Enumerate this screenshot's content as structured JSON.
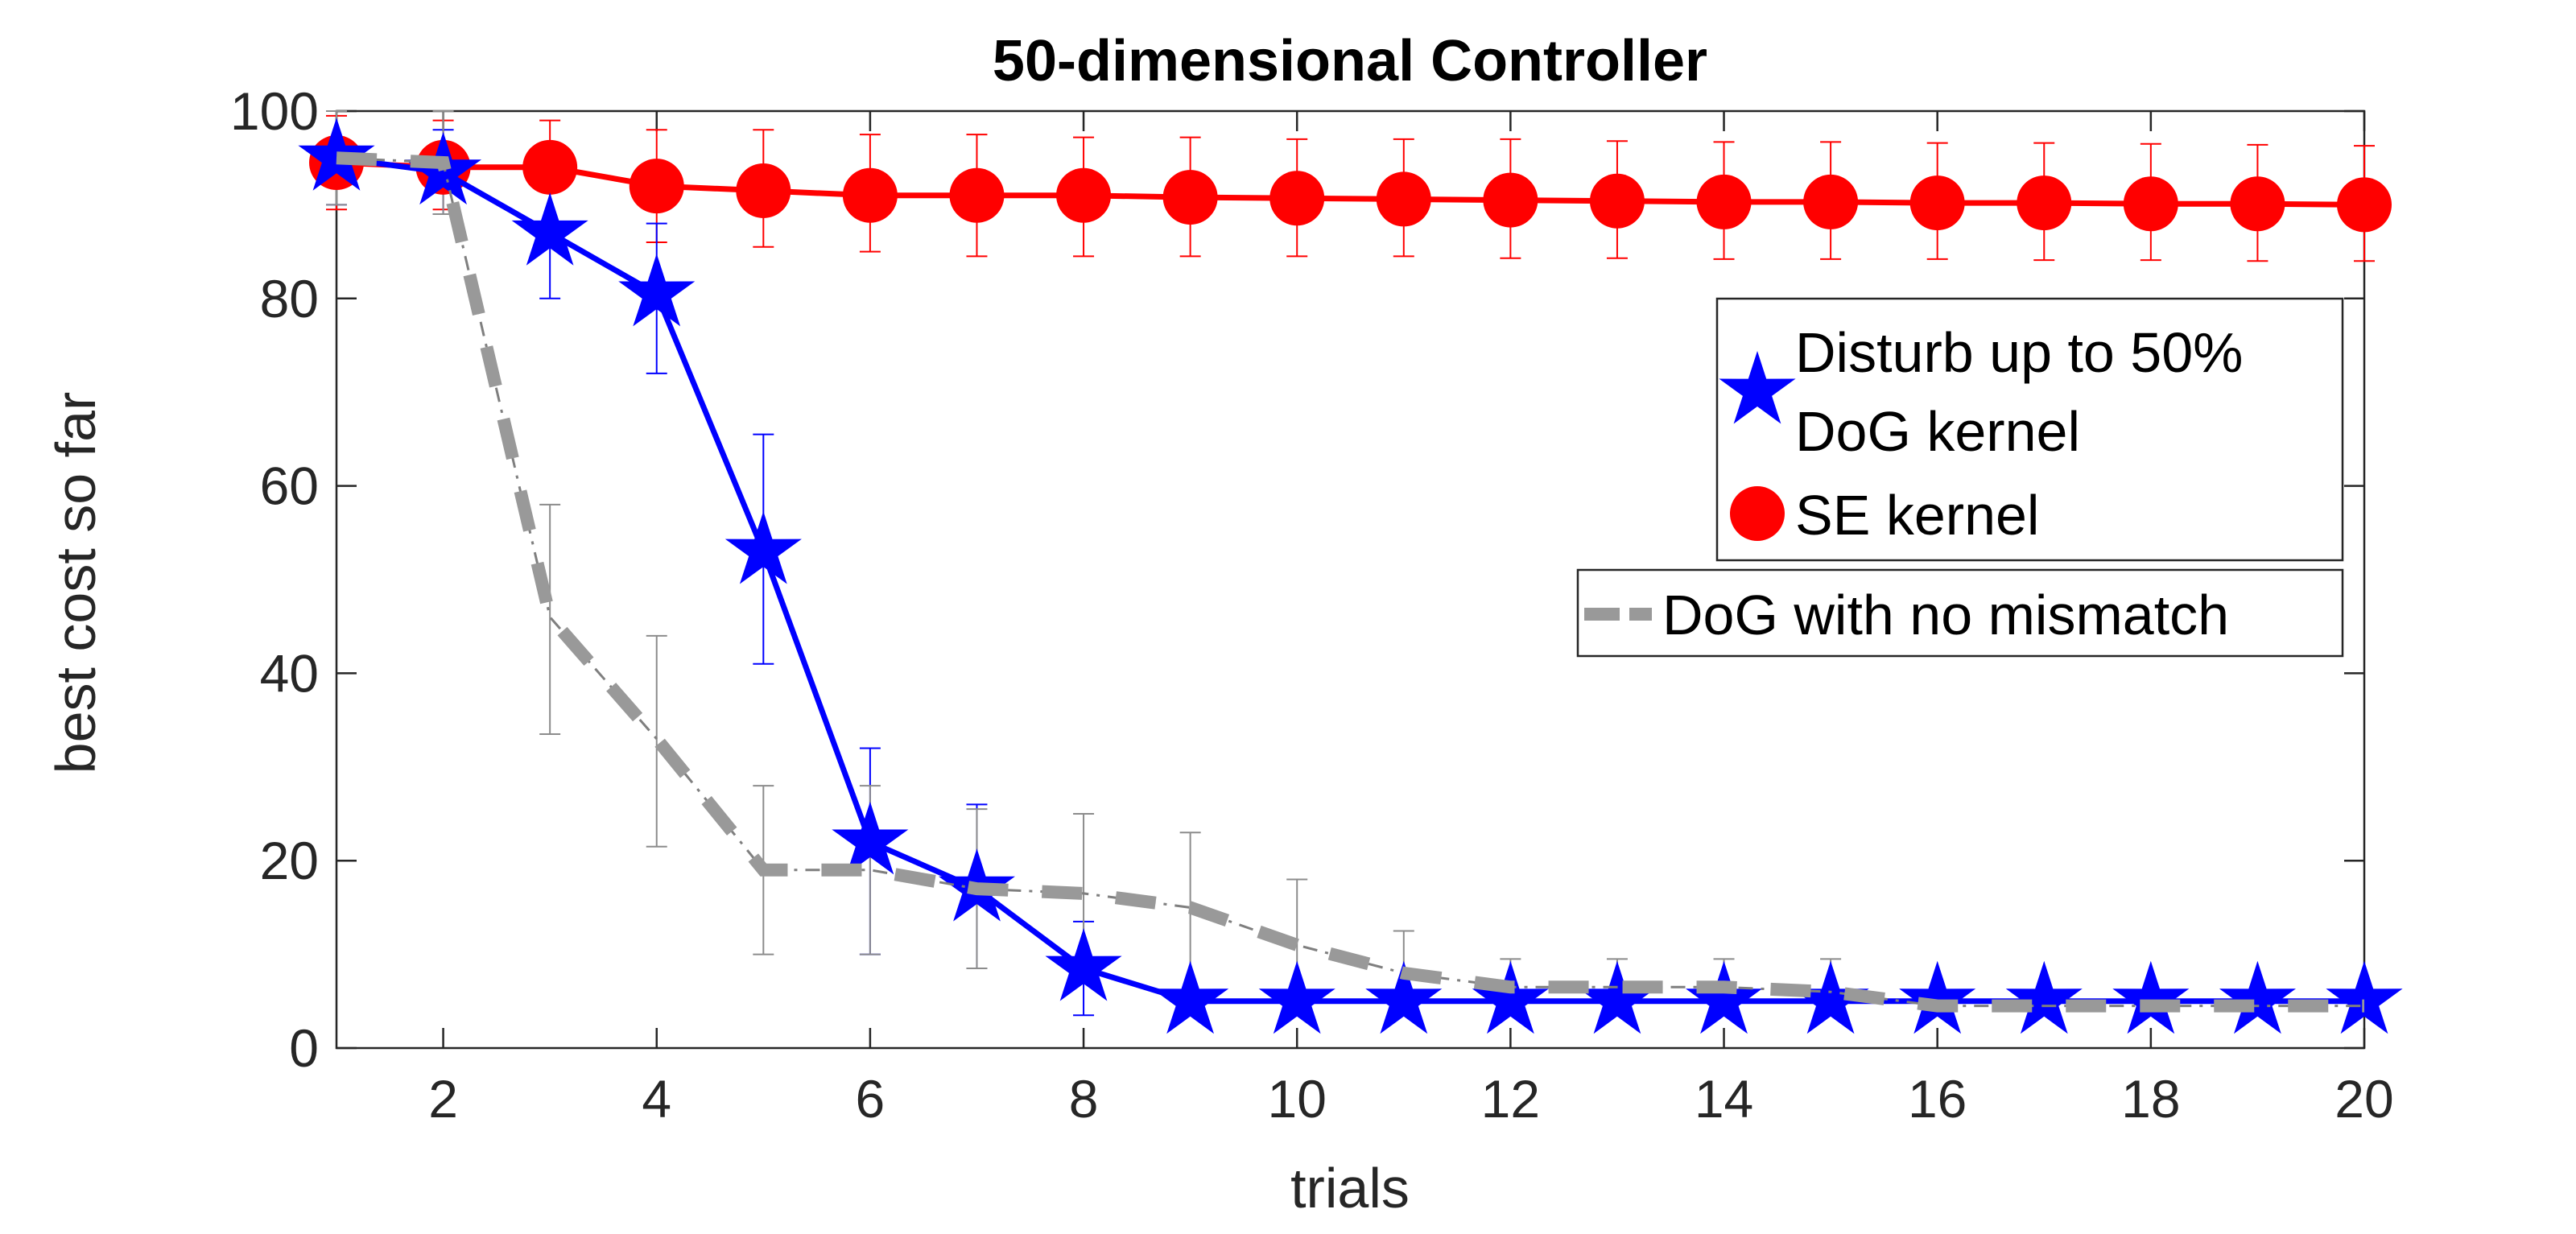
{
  "chart_data": {
    "type": "line",
    "title": "50-dimensional Controller",
    "xlabel": "trials",
    "ylabel": "best cost so far",
    "xlim": [
      1,
      20
    ],
    "ylim": [
      0,
      100
    ],
    "xticks": [
      2,
      4,
      6,
      8,
      10,
      12,
      14,
      16,
      18,
      20
    ],
    "yticks": [
      0,
      20,
      40,
      60,
      80,
      100
    ],
    "grid": false,
    "legend_position": "right",
    "x": [
      1,
      2,
      3,
      4,
      5,
      6,
      7,
      8,
      9,
      10,
      11,
      12,
      13,
      14,
      15,
      16,
      17,
      18,
      19,
      20
    ],
    "series": [
      {
        "name": "Disturb up to 50% DoG kernel",
        "legend_label_line1": "Disturb up to 50%",
        "legend_label_line2": "DoG kernel",
        "color": "#0000ff",
        "marker": "star",
        "line_style": "solid",
        "values": [
          95,
          93.5,
          87,
          80.5,
          53,
          22,
          17,
          8.5,
          5,
          5,
          5,
          5,
          5,
          5,
          5,
          5,
          5,
          5,
          5,
          5
        ],
        "err_low": [
          90,
          89,
          80,
          72,
          41,
          10,
          8.5,
          3.5,
          5,
          5,
          5,
          5,
          5,
          5,
          5,
          5,
          5,
          5,
          5,
          5
        ],
        "err_high": [
          100,
          98,
          93,
          88,
          65.5,
          32,
          26,
          13.5,
          5,
          5,
          5,
          5,
          5,
          5,
          5,
          5,
          5,
          5,
          5,
          5
        ]
      },
      {
        "name": "SE kernel",
        "color": "#ff0000",
        "marker": "circle",
        "line_style": "solid",
        "values": [
          94.5,
          94,
          94,
          92,
          91.5,
          91,
          91,
          91,
          90.8,
          90.7,
          90.6,
          90.5,
          90.4,
          90.3,
          90.3,
          90.2,
          90.2,
          90.1,
          90.1,
          90
        ],
        "err_low": [
          89.5,
          89.5,
          88,
          86,
          85.5,
          85,
          84.5,
          84.5,
          84.5,
          84.5,
          84.5,
          84.3,
          84.3,
          84.2,
          84.2,
          84.2,
          84.1,
          84.1,
          84,
          84
        ],
        "err_high": [
          99.5,
          99,
          99,
          98,
          98,
          97.5,
          97.5,
          97.2,
          97.2,
          97,
          97,
          97,
          96.8,
          96.7,
          96.7,
          96.6,
          96.6,
          96.5,
          96.4,
          96.3
        ]
      },
      {
        "name": "DoG with no mismatch",
        "color": "#999999",
        "marker": "none",
        "line_style": "dash-dot",
        "values": [
          95,
          94.5,
          46,
          33,
          19,
          19,
          17,
          16.5,
          15,
          11,
          8,
          6.5,
          6.5,
          6.5,
          6,
          4.5,
          4.5,
          4.5,
          4.5,
          4.5
        ],
        "err_low": [
          90,
          89,
          33.5,
          21.5,
          10,
          10,
          8.5,
          8,
          5,
          4.5,
          4.5,
          4.5,
          4.5,
          4.5,
          4.5,
          4.5,
          4.5,
          4.5,
          4.5,
          4.5
        ],
        "err_high": [
          100,
          100,
          58,
          44,
          28,
          28,
          25.5,
          25,
          23,
          18,
          12.5,
          9.5,
          9.5,
          9.5,
          9.5,
          4.5,
          4.5,
          4.5,
          4.5,
          4.5
        ]
      }
    ]
  }
}
